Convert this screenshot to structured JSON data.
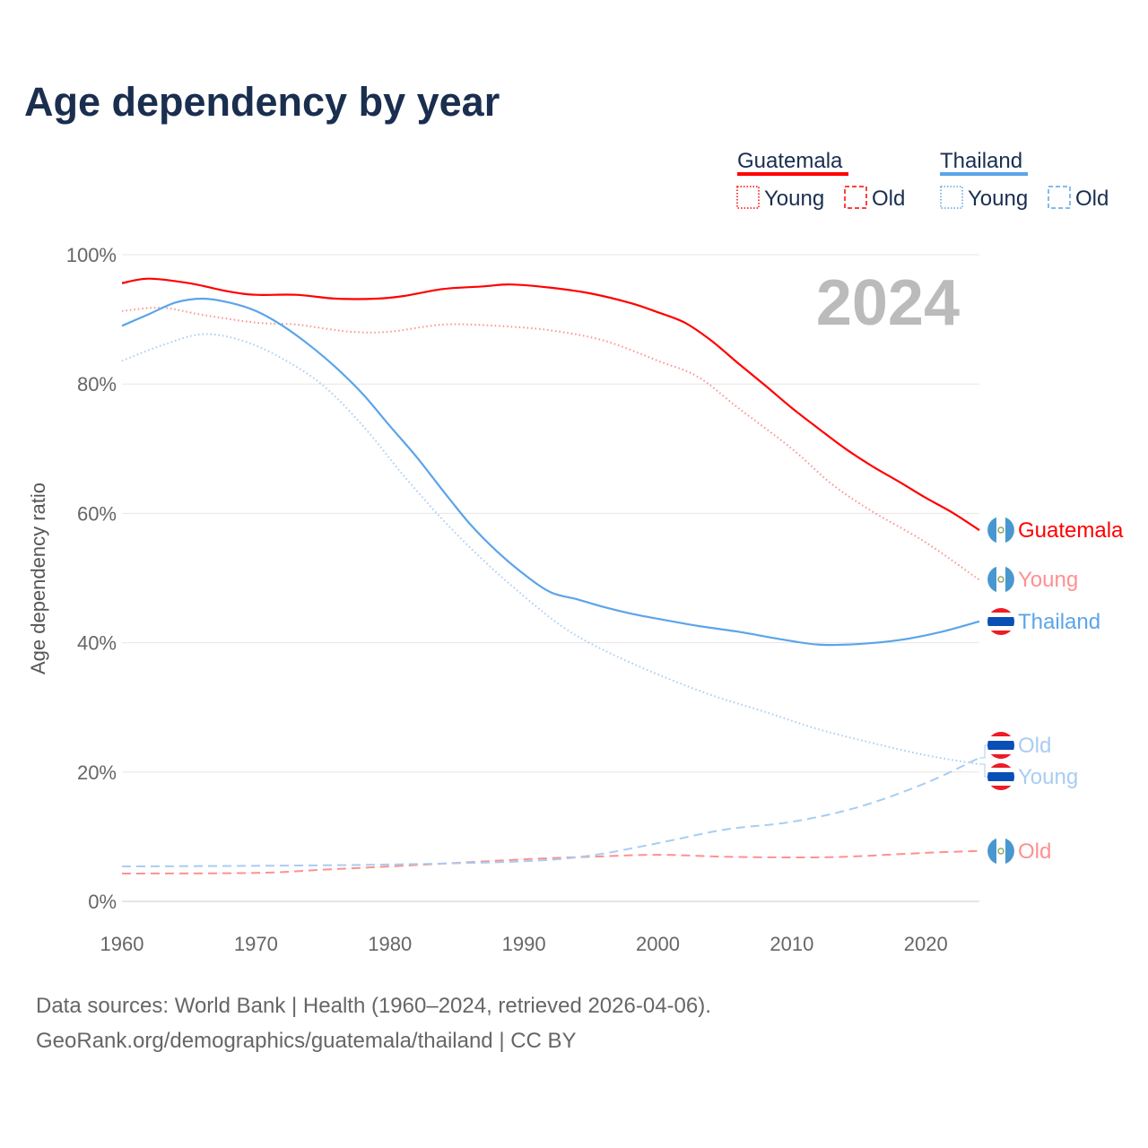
{
  "title": "Age dependency by year",
  "source_line1": "Data sources: World Bank | Health (1960–2024, retrieved 2026-04-06).",
  "source_line2": "GeoRank.org/demographics/guatemala/thailand | CC BY",
  "year_label": "2024",
  "legend": {
    "countries": [
      {
        "name": "Guatemala",
        "color": "#ff0000",
        "young": "Young",
        "old": "Old"
      },
      {
        "name": "Thailand",
        "color": "#5ba4ea",
        "young": "Young",
        "old": "Old"
      }
    ]
  },
  "end_labels": {
    "guatemala_total": "Guatemala",
    "guatemala_young": "Young",
    "guatemala_old": "Old",
    "thailand_total": "Thailand",
    "thailand_young": "Young",
    "thailand_old": "Old"
  },
  "chart_data": {
    "type": "line",
    "title": "Age dependency by year",
    "xlabel": "",
    "ylabel": "Age dependency ratio",
    "xlim": [
      1960,
      2024
    ],
    "ylim": [
      0,
      100
    ],
    "xticks": [
      "1960",
      "1970",
      "1980",
      "1990",
      "2000",
      "2010",
      "2020"
    ],
    "yticks": [
      "0%",
      "20%",
      "40%",
      "60%",
      "80%",
      "100%"
    ],
    "grid": true,
    "series": [
      {
        "name": "Guatemala",
        "style": "solid",
        "color": "#ff0000",
        "points": [
          [
            1960,
            95.6
          ],
          [
            1962,
            96.3
          ],
          [
            1965,
            95.6
          ],
          [
            1968,
            94.3
          ],
          [
            1970,
            93.8
          ],
          [
            1973,
            93.8
          ],
          [
            1976,
            93.2
          ],
          [
            1979,
            93.2
          ],
          [
            1981,
            93.6
          ],
          [
            1984,
            94.7
          ],
          [
            1987,
            95.1
          ],
          [
            1989,
            95.4
          ],
          [
            1992,
            94.9
          ],
          [
            1995,
            94.0
          ],
          [
            1998,
            92.5
          ],
          [
            2000,
            91.1
          ],
          [
            2002,
            89.5
          ],
          [
            2004,
            86.7
          ],
          [
            2006,
            83.2
          ],
          [
            2008,
            79.8
          ],
          [
            2010,
            76.3
          ],
          [
            2012,
            73.1
          ],
          [
            2014,
            70.0
          ],
          [
            2016,
            67.3
          ],
          [
            2018,
            64.9
          ],
          [
            2020,
            62.4
          ],
          [
            2022,
            60.1
          ],
          [
            2024,
            57.4
          ]
        ]
      },
      {
        "name": "Guatemala Young",
        "style": "dotted",
        "color": "#ff9090",
        "points": [
          [
            1960,
            91.3
          ],
          [
            1963,
            91.8
          ],
          [
            1966,
            90.7
          ],
          [
            1970,
            89.5
          ],
          [
            1973,
            89.2
          ],
          [
            1977,
            88.1
          ],
          [
            1980,
            88.1
          ],
          [
            1984,
            89.2
          ],
          [
            1988,
            89.0
          ],
          [
            1992,
            88.3
          ],
          [
            1996,
            86.7
          ],
          [
            2000,
            83.6
          ],
          [
            2003,
            81.1
          ],
          [
            2006,
            76.3
          ],
          [
            2010,
            70.0
          ],
          [
            2013,
            64.5
          ],
          [
            2016,
            60.3
          ],
          [
            2020,
            55.5
          ],
          [
            2024,
            49.7
          ]
        ]
      },
      {
        "name": "Guatemala Old",
        "style": "dashed",
        "color": "#ff9090",
        "points": [
          [
            1960,
            4.3
          ],
          [
            1970,
            4.4
          ],
          [
            1975,
            4.9
          ],
          [
            1980,
            5.4
          ],
          [
            1990,
            6.5
          ],
          [
            1995,
            6.9
          ],
          [
            2000,
            7.2
          ],
          [
            2005,
            6.9
          ],
          [
            2010,
            6.8
          ],
          [
            2014,
            6.9
          ],
          [
            2020,
            7.5
          ],
          [
            2024,
            7.8
          ]
        ]
      },
      {
        "name": "Thailand",
        "style": "solid",
        "color": "#5ba4ea",
        "points": [
          [
            1960,
            89.0
          ],
          [
            1962,
            90.8
          ],
          [
            1964,
            92.6
          ],
          [
            1966,
            93.2
          ],
          [
            1968,
            92.6
          ],
          [
            1970,
            91.3
          ],
          [
            1972,
            89.0
          ],
          [
            1974,
            86.0
          ],
          [
            1976,
            82.5
          ],
          [
            1978,
            78.4
          ],
          [
            1980,
            73.5
          ],
          [
            1982,
            68.7
          ],
          [
            1984,
            63.4
          ],
          [
            1986,
            58.3
          ],
          [
            1988,
            54.1
          ],
          [
            1990,
            50.6
          ],
          [
            1992,
            47.8
          ],
          [
            1994,
            46.7
          ],
          [
            1996,
            45.5
          ],
          [
            1998,
            44.5
          ],
          [
            2000,
            43.7
          ],
          [
            2003,
            42.6
          ],
          [
            2006,
            41.7
          ],
          [
            2009,
            40.6
          ],
          [
            2012,
            39.7
          ],
          [
            2015,
            39.8
          ],
          [
            2018,
            40.4
          ],
          [
            2021,
            41.6
          ],
          [
            2024,
            43.3
          ]
        ]
      },
      {
        "name": "Thailand Young",
        "style": "dotted",
        "color": "#a8cdf2",
        "points": [
          [
            1960,
            83.6
          ],
          [
            1963,
            86.0
          ],
          [
            1966,
            87.7
          ],
          [
            1969,
            86.7
          ],
          [
            1972,
            83.9
          ],
          [
            1975,
            79.8
          ],
          [
            1978,
            73.5
          ],
          [
            1981,
            65.9
          ],
          [
            1984,
            58.9
          ],
          [
            1987,
            52.7
          ],
          [
            1990,
            47.2
          ],
          [
            1993,
            42.3
          ],
          [
            1996,
            38.8
          ],
          [
            2000,
            35.1
          ],
          [
            2004,
            31.9
          ],
          [
            2008,
            29.3
          ],
          [
            2012,
            26.6
          ],
          [
            2016,
            24.5
          ],
          [
            2020,
            22.6
          ],
          [
            2024,
            21.2
          ]
        ]
      },
      {
        "name": "Thailand Old",
        "style": "dashed",
        "color": "#a8cdf2",
        "points": [
          [
            1960,
            5.4
          ],
          [
            1970,
            5.5
          ],
          [
            1980,
            5.7
          ],
          [
            1990,
            6.2
          ],
          [
            1995,
            7.1
          ],
          [
            2000,
            9.0
          ],
          [
            2005,
            11.1
          ],
          [
            2010,
            12.3
          ],
          [
            2015,
            14.6
          ],
          [
            2020,
            18.3
          ],
          [
            2024,
            22.2
          ]
        ]
      }
    ]
  }
}
